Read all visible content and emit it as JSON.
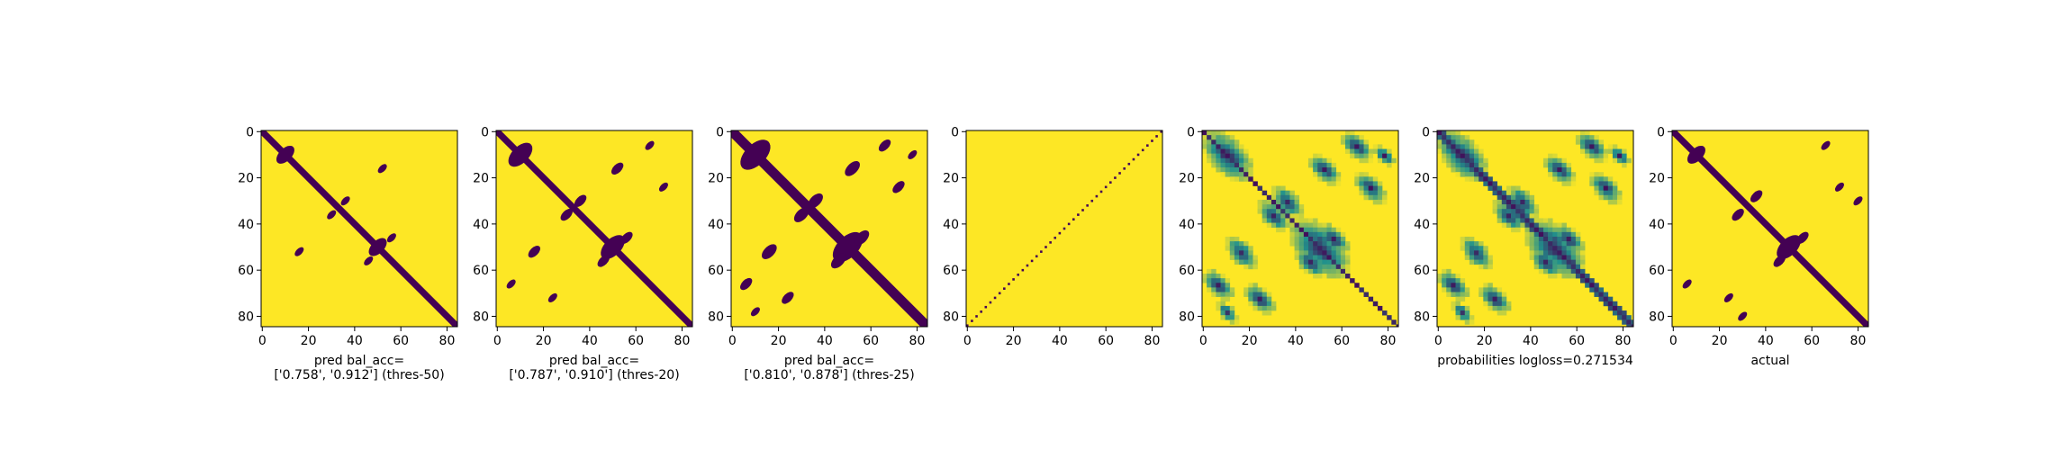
{
  "colors": {
    "low": "#440154",
    "mid": "#21918c",
    "high": "#fde725"
  },
  "chart_data": [
    {
      "type": "heatmap",
      "kind": "binary",
      "xlabel": "pred bal_acc=\n['0.758', '0.912'] (thres-50)",
      "ticks": [
        0,
        20,
        40,
        60,
        80
      ],
      "matrix_size": 85,
      "diagonal_band_width": 2,
      "features": [
        {
          "cx": 10,
          "cy": 10,
          "r": 3
        },
        {
          "cx": 30,
          "cy": 36,
          "r": 1.5
        },
        {
          "cx": 36,
          "cy": 30,
          "r": 1.5
        },
        {
          "cx": 50,
          "cy": 50,
          "r": 3
        },
        {
          "cx": 46,
          "cy": 56,
          "r": 1.5
        },
        {
          "cx": 56,
          "cy": 46,
          "r": 1.5
        },
        {
          "cx": 16,
          "cy": 52,
          "r": 1.5
        },
        {
          "cx": 52,
          "cy": 16,
          "r": 1.5
        }
      ]
    },
    {
      "type": "heatmap",
      "kind": "binary",
      "xlabel": "pred bal_acc=\n['0.787', '0.910'] (thres-20)",
      "ticks": [
        0,
        20,
        40,
        60,
        80
      ],
      "matrix_size": 85,
      "diagonal_band_width": 2,
      "features": [
        {
          "cx": 10,
          "cy": 10,
          "r": 4
        },
        {
          "cx": 30,
          "cy": 36,
          "r": 2
        },
        {
          "cx": 36,
          "cy": 30,
          "r": 2
        },
        {
          "cx": 50,
          "cy": 50,
          "r": 4
        },
        {
          "cx": 46,
          "cy": 56,
          "r": 2
        },
        {
          "cx": 56,
          "cy": 46,
          "r": 2
        },
        {
          "cx": 16,
          "cy": 52,
          "r": 2
        },
        {
          "cx": 52,
          "cy": 16,
          "r": 2
        },
        {
          "cx": 6,
          "cy": 66,
          "r": 1.5
        },
        {
          "cx": 66,
          "cy": 6,
          "r": 1.5
        },
        {
          "cx": 24,
          "cy": 72,
          "r": 1.5
        },
        {
          "cx": 72,
          "cy": 24,
          "r": 1.5
        }
      ]
    },
    {
      "type": "heatmap",
      "kind": "binary",
      "xlabel": "pred bal_acc=\n['0.810', '0.878'] (thres-25)",
      "ticks": [
        0,
        20,
        40,
        60,
        80
      ],
      "matrix_size": 85,
      "diagonal_band_width": 3,
      "features": [
        {
          "cx": 10,
          "cy": 10,
          "r": 5
        },
        {
          "cx": 30,
          "cy": 36,
          "r": 2.5
        },
        {
          "cx": 36,
          "cy": 30,
          "r": 2.5
        },
        {
          "cx": 50,
          "cy": 50,
          "r": 5
        },
        {
          "cx": 46,
          "cy": 56,
          "r": 2.5
        },
        {
          "cx": 56,
          "cy": 46,
          "r": 2.5
        },
        {
          "cx": 16,
          "cy": 52,
          "r": 2.5
        },
        {
          "cx": 52,
          "cy": 16,
          "r": 2.5
        },
        {
          "cx": 6,
          "cy": 66,
          "r": 2
        },
        {
          "cx": 66,
          "cy": 6,
          "r": 2
        },
        {
          "cx": 24,
          "cy": 72,
          "r": 2
        },
        {
          "cx": 72,
          "cy": 24,
          "r": 2
        },
        {
          "cx": 10,
          "cy": 78,
          "r": 1.5
        },
        {
          "cx": 78,
          "cy": 10,
          "r": 1.5
        }
      ]
    },
    {
      "type": "heatmap",
      "kind": "binary-antidiagonal",
      "xlabel": "",
      "ticks": [
        0,
        20,
        40,
        60,
        80
      ],
      "matrix_size": 85,
      "diagonal_band_width": 1,
      "features": []
    },
    {
      "type": "heatmap",
      "kind": "continuous",
      "xlabel": "",
      "ticks": [
        0,
        20,
        40,
        60,
        80
      ],
      "matrix_size": 85,
      "diagonal_band_width": 1,
      "features": [
        {
          "cx": 10,
          "cy": 10,
          "r": 5
        },
        {
          "cx": 30,
          "cy": 36,
          "r": 3
        },
        {
          "cx": 36,
          "cy": 30,
          "r": 3
        },
        {
          "cx": 50,
          "cy": 50,
          "r": 6
        },
        {
          "cx": 46,
          "cy": 56,
          "r": 3
        },
        {
          "cx": 56,
          "cy": 46,
          "r": 3
        },
        {
          "cx": 16,
          "cy": 52,
          "r": 3
        },
        {
          "cx": 52,
          "cy": 16,
          "r": 3
        },
        {
          "cx": 6,
          "cy": 66,
          "r": 3
        },
        {
          "cx": 66,
          "cy": 6,
          "r": 3
        },
        {
          "cx": 24,
          "cy": 72,
          "r": 3
        },
        {
          "cx": 72,
          "cy": 24,
          "r": 3
        },
        {
          "cx": 10,
          "cy": 78,
          "r": 2
        },
        {
          "cx": 78,
          "cy": 10,
          "r": 2
        }
      ]
    },
    {
      "type": "heatmap",
      "kind": "continuous",
      "xlabel": "probabilities logloss=0.271534",
      "ticks": [
        0,
        20,
        40,
        60,
        80
      ],
      "matrix_size": 85,
      "diagonal_band_width": 3,
      "features": [
        {
          "cx": 10,
          "cy": 10,
          "r": 5
        },
        {
          "cx": 30,
          "cy": 36,
          "r": 3
        },
        {
          "cx": 36,
          "cy": 30,
          "r": 3
        },
        {
          "cx": 50,
          "cy": 50,
          "r": 6
        },
        {
          "cx": 46,
          "cy": 56,
          "r": 3
        },
        {
          "cx": 56,
          "cy": 46,
          "r": 3
        },
        {
          "cx": 16,
          "cy": 52,
          "r": 3
        },
        {
          "cx": 52,
          "cy": 16,
          "r": 3
        },
        {
          "cx": 6,
          "cy": 66,
          "r": 3
        },
        {
          "cx": 66,
          "cy": 6,
          "r": 3
        },
        {
          "cx": 24,
          "cy": 72,
          "r": 3
        },
        {
          "cx": 72,
          "cy": 24,
          "r": 3
        },
        {
          "cx": 10,
          "cy": 78,
          "r": 2
        },
        {
          "cx": 78,
          "cy": 10,
          "r": 2
        }
      ]
    },
    {
      "type": "heatmap",
      "kind": "binary",
      "xlabel": "actual",
      "ticks": [
        0,
        20,
        40,
        60,
        80
      ],
      "matrix_size": 85,
      "diagonal_band_width": 2,
      "features": [
        {
          "cx": 10,
          "cy": 10,
          "r": 3
        },
        {
          "cx": 28,
          "cy": 36,
          "r": 2
        },
        {
          "cx": 36,
          "cy": 28,
          "r": 2
        },
        {
          "cx": 50,
          "cy": 50,
          "r": 4
        },
        {
          "cx": 46,
          "cy": 56,
          "r": 2
        },
        {
          "cx": 56,
          "cy": 46,
          "r": 2
        },
        {
          "cx": 6,
          "cy": 66,
          "r": 1.5
        },
        {
          "cx": 66,
          "cy": 6,
          "r": 1.5
        },
        {
          "cx": 24,
          "cy": 72,
          "r": 1.5
        },
        {
          "cx": 72,
          "cy": 24,
          "r": 1.5
        },
        {
          "cx": 80,
          "cy": 30,
          "r": 1.5
        },
        {
          "cx": 30,
          "cy": 80,
          "r": 1.5
        }
      ]
    }
  ]
}
